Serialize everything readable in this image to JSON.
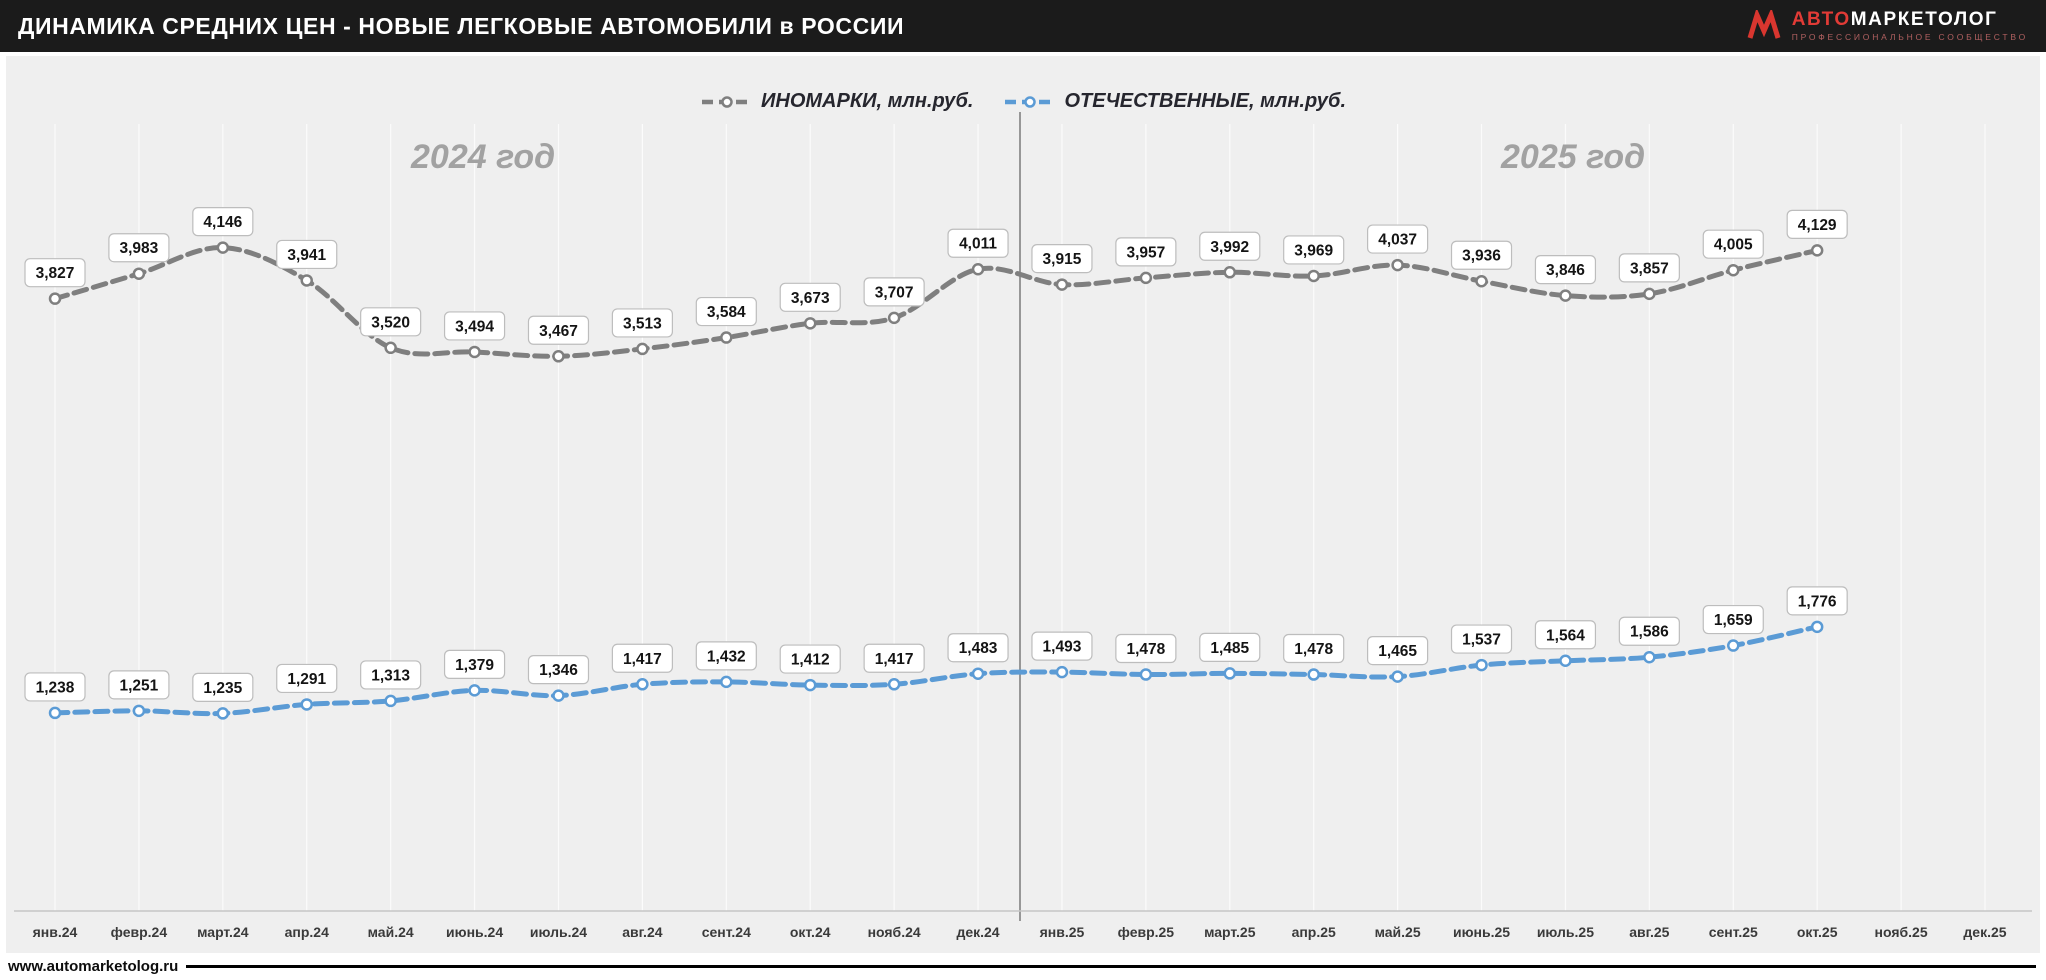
{
  "header": {
    "title": "ДИНАМИКА СРЕДНИХ ЦЕН - НОВЫЕ ЛЕГКОВЫЕ АВТОМОБИЛИ в РОССИИ",
    "logo": {
      "brand_red": "АВТО",
      "brand_white": "МАРКЕТОЛОГ",
      "subtitle": "ПРОФЕССИОНАЛЬНОЕ СООБЩЕСТВО"
    }
  },
  "footer": {
    "website": "www.automarketolog.ru"
  },
  "chart_data": {
    "type": "line",
    "title": "ДИНАМИКА СРЕДНИХ ЦЕН - НОВЫЕ ЛЕГКОВЫЕ АВТОМОБИЛИ в РОССИИ",
    "year_labels": [
      "2024 год",
      "2025 год"
    ],
    "categories": [
      "янв.24",
      "февр.24",
      "март.24",
      "апр.24",
      "май.24",
      "июнь.24",
      "июль.24",
      "авг.24",
      "сент.24",
      "окт.24",
      "нояб.24",
      "дек.24",
      "янв.25",
      "февр.25",
      "март.25",
      "апр.25",
      "май.25",
      "июнь.25",
      "июль.25",
      "авг.25",
      "сент.25",
      "окт.25",
      "нояб.25",
      "дек.25"
    ],
    "series": [
      {
        "name": "ИНОМАРКИ, млн.руб.",
        "color": "#7f7f7f",
        "values": [
          3827,
          3983,
          4146,
          3941,
          3520,
          3494,
          3467,
          3513,
          3584,
          3673,
          3707,
          4011,
          3915,
          3957,
          3992,
          3969,
          4037,
          3936,
          3846,
          3857,
          4005,
          4129
        ]
      },
      {
        "name": "ОТЕЧЕСТВЕННЫЕ, млн.руб.",
        "color": "#5b9bd5",
        "values": [
          1238,
          1251,
          1235,
          1291,
          1313,
          1379,
          1346,
          1417,
          1432,
          1412,
          1417,
          1483,
          1493,
          1478,
          1485,
          1478,
          1465,
          1537,
          1564,
          1586,
          1659,
          1776
        ]
      }
    ],
    "ylim": [
      0,
      4500
    ],
    "grid": "vertical-faint",
    "legend_position": "top-center",
    "year_separator_after_category": "дек.24",
    "panel_background": "#efefef",
    "label_box": {
      "fill": "#ffffff",
      "border": "#bdbdbd"
    }
  }
}
